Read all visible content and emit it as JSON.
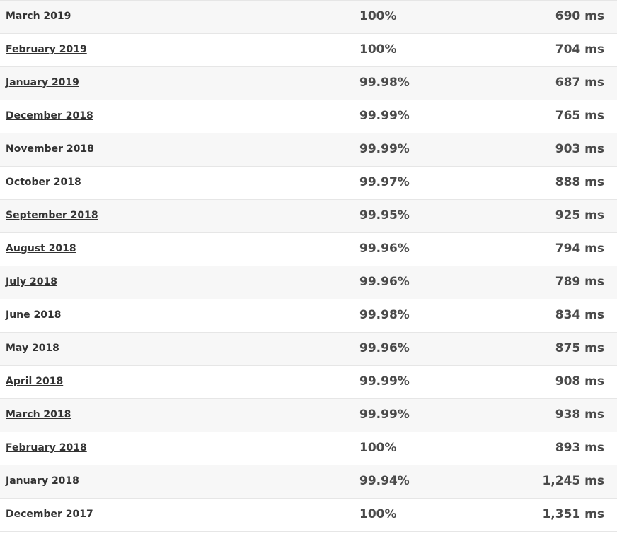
{
  "table": {
    "rows": [
      {
        "month": "March 2019",
        "uptime": "100%",
        "response": "690 ms"
      },
      {
        "month": "February 2019",
        "uptime": "100%",
        "response": "704 ms"
      },
      {
        "month": "January 2019",
        "uptime": "99.98%",
        "response": "687 ms"
      },
      {
        "month": "December 2018",
        "uptime": "99.99%",
        "response": "765 ms"
      },
      {
        "month": "November 2018",
        "uptime": "99.99%",
        "response": "903 ms"
      },
      {
        "month": "October 2018",
        "uptime": "99.97%",
        "response": "888 ms"
      },
      {
        "month": "September 2018",
        "uptime": "99.95%",
        "response": "925 ms"
      },
      {
        "month": "August 2018",
        "uptime": "99.96%",
        "response": "794 ms"
      },
      {
        "month": "July 2018",
        "uptime": "99.96%",
        "response": "789 ms"
      },
      {
        "month": "June 2018",
        "uptime": "99.98%",
        "response": "834 ms"
      },
      {
        "month": "May 2018",
        "uptime": "99.96%",
        "response": "875 ms"
      },
      {
        "month": "April 2018",
        "uptime": "99.99%",
        "response": "908 ms"
      },
      {
        "month": "March 2018",
        "uptime": "99.99%",
        "response": "938 ms"
      },
      {
        "month": "February 2018",
        "uptime": "100%",
        "response": "893 ms"
      },
      {
        "month": "January 2018",
        "uptime": "99.94%",
        "response": "1,245 ms"
      },
      {
        "month": "December 2017",
        "uptime": "100%",
        "response": "1,351 ms"
      }
    ]
  },
  "colors": {
    "row_alt": "#f7f7f7",
    "row_plain": "#ffffff",
    "border": "#e6e6e6",
    "text": "#4a4a4a",
    "link": "#333333"
  }
}
